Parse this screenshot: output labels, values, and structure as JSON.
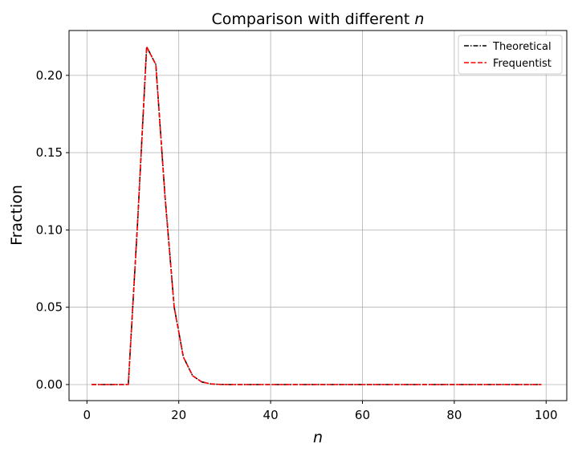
{
  "chart_data": {
    "type": "line",
    "title": "Comparison with different ",
    "title_italic": "n",
    "xlabel": "n",
    "ylabel": "Fraction",
    "xlim": [
      -3.9,
      104.5
    ],
    "ylim": [
      -0.0104,
      0.229
    ],
    "xticks": [
      0,
      20,
      40,
      60,
      80,
      100
    ],
    "yticks": [
      0.0,
      0.05,
      0.1,
      0.15,
      0.2
    ],
    "ytick_labels": [
      "0.00",
      "0.05",
      "0.10",
      "0.15",
      "0.20"
    ],
    "grid": true,
    "legend_position": "top-right",
    "x": [
      1,
      3,
      5,
      7,
      9,
      11,
      13,
      15,
      17,
      19,
      21,
      23,
      25,
      27,
      29,
      31,
      33,
      35,
      37,
      39,
      41,
      43,
      45,
      47,
      49,
      51,
      53,
      55,
      57,
      59,
      61,
      63,
      65,
      67,
      69,
      71,
      73,
      75,
      77,
      79,
      81,
      83,
      85,
      87,
      89,
      91,
      93,
      95,
      97,
      99
    ],
    "series": [
      {
        "name": "Theoretical",
        "color": "#000000",
        "style": "dash-dot",
        "values": [
          0,
          0,
          0,
          0,
          0,
          0.103,
          0.2185,
          0.207,
          0.122,
          0.05,
          0.0178,
          0.0057,
          0.0017,
          0.0004,
          0.0001,
          0,
          0,
          0,
          0,
          0,
          0,
          0,
          0,
          0,
          0,
          0,
          0,
          0,
          0,
          0,
          0,
          0,
          0,
          0,
          0,
          0,
          0,
          0,
          0,
          0,
          0,
          0,
          0,
          0,
          0,
          0,
          0,
          0,
          0,
          0
        ]
      },
      {
        "name": "Frequentist",
        "color": "#ff0000",
        "style": "dashed",
        "values": [
          0,
          0,
          0,
          0,
          0,
          0.103,
          0.2185,
          0.207,
          0.122,
          0.05,
          0.0178,
          0.0057,
          0.0017,
          0.0004,
          0.0001,
          0,
          0,
          0,
          0,
          0,
          0,
          0,
          0,
          0,
          0,
          0,
          0,
          0,
          0,
          0,
          0,
          0,
          0,
          0,
          0,
          0,
          0,
          0,
          0,
          0,
          0,
          0,
          0,
          0,
          0,
          0,
          0,
          0,
          0,
          0
        ]
      }
    ]
  }
}
